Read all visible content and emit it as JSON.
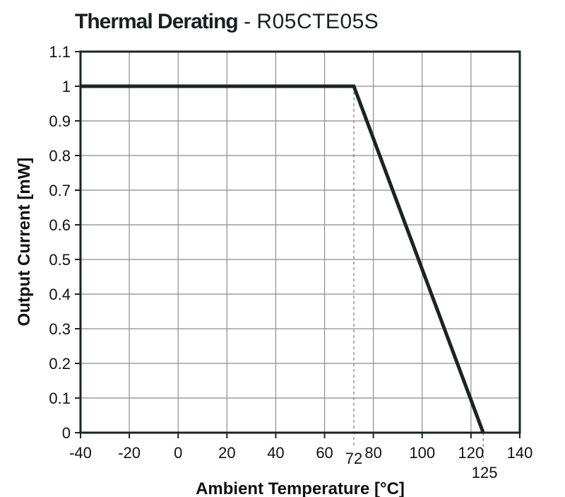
{
  "chart_data": {
    "type": "line",
    "title": "Thermal Derating",
    "title_separator": " - ",
    "subtitle": "R05CTE05S",
    "xlabel": "Ambient Temperature [°C]",
    "ylabel": "Output Current [mW]",
    "xlim": [
      -40,
      140
    ],
    "ylim": [
      0,
      1.1
    ],
    "x_ticks": [
      -40,
      -20,
      0,
      20,
      40,
      60,
      80,
      100,
      120,
      140
    ],
    "y_ticks": [
      0,
      0.1,
      0.2,
      0.3,
      0.4,
      0.5,
      0.6,
      0.7,
      0.8,
      0.9,
      1,
      1.1
    ],
    "x_tick_labels": [
      "-40",
      "-20",
      "0",
      "20",
      "40",
      "60",
      "80",
      "100",
      "120",
      "140"
    ],
    "y_tick_labels": [
      "0",
      "0.1",
      "0.2",
      "0.3",
      "0.4",
      "0.5",
      "0.6",
      "0.7",
      "0.8",
      "0.9",
      "1",
      "1.1"
    ],
    "grid": true,
    "series": [
      {
        "x": [
          -40,
          72,
          125
        ],
        "y": [
          1,
          1,
          0
        ]
      }
    ],
    "annotations": [
      {
        "x": 72,
        "label": "72"
      },
      {
        "x": 125,
        "label": "125"
      }
    ],
    "colors": {
      "line": "#1a2422",
      "grid": "#8c8c8c",
      "frame": "#1a2422",
      "guide": "#777777"
    }
  }
}
